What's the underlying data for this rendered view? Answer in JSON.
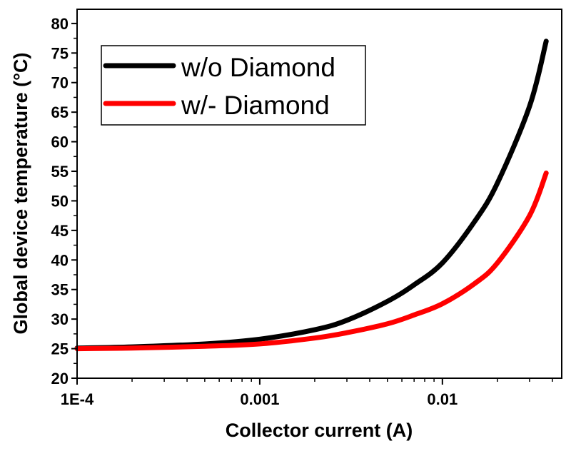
{
  "chart_data": {
    "type": "line",
    "title": "",
    "xlabel": "Collector current (A)",
    "ylabel": "Global device temperature (°C)",
    "xscale": "log",
    "xlim": [
      0.0001,
      0.045
    ],
    "ylim": [
      20,
      82.4
    ],
    "xticks": [
      {
        "value": 0.0001,
        "label": "1E-4"
      },
      {
        "value": 0.001,
        "label": "0.001"
      },
      {
        "value": 0.01,
        "label": "0.01"
      }
    ],
    "yticks": [
      20,
      25,
      30,
      35,
      40,
      45,
      50,
      55,
      60,
      65,
      70,
      75,
      80
    ],
    "grid": false,
    "legend_position": "top-left",
    "series": [
      {
        "name": "w/o Diamond",
        "color": "#000000",
        "x": [
          0.0001,
          0.0002,
          0.0005,
          0.001,
          0.002,
          0.003,
          0.005,
          0.007,
          0.01,
          0.015,
          0.02,
          0.03,
          0.037
        ],
        "y": [
          25.1,
          25.3,
          25.8,
          26.6,
          28.2,
          29.8,
          33,
          35.8,
          39.5,
          46.5,
          53,
          66,
          77
        ]
      },
      {
        "name": "w/- Diamond",
        "color": "#ff0000",
        "x": [
          0.0001,
          0.0002,
          0.0005,
          0.001,
          0.002,
          0.003,
          0.005,
          0.007,
          0.01,
          0.015,
          0.02,
          0.03,
          0.037
        ],
        "y": [
          25.0,
          25.1,
          25.4,
          25.8,
          26.8,
          27.7,
          29.2,
          30.7,
          32.6,
          36,
          39.5,
          47.5,
          54.7
        ]
      }
    ]
  }
}
